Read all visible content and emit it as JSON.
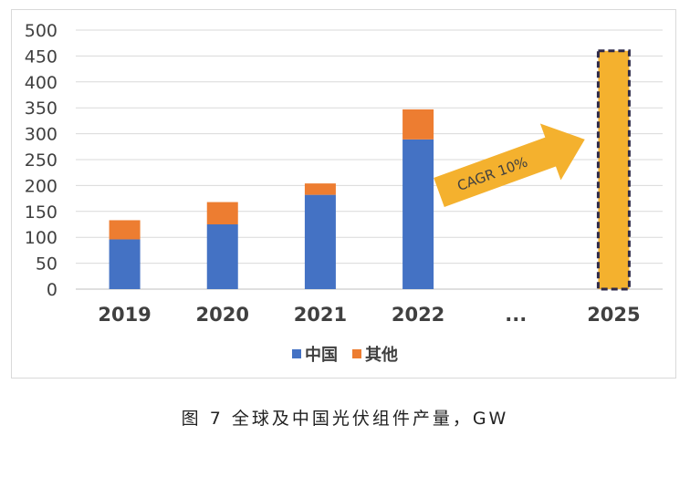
{
  "caption": "图 7 全球及中国光伏组件产量，GW",
  "chart_data": {
    "type": "bar",
    "stacked": true,
    "categories": [
      "2019",
      "2020",
      "2021",
      "2022",
      "...",
      "2025"
    ],
    "series": [
      {
        "name": "中国",
        "color": "#4472c4",
        "values": [
          96,
          125,
          182,
          289,
          null,
          null
        ]
      },
      {
        "name": "其他",
        "color": "#ed7d31",
        "values": [
          37,
          43,
          22,
          58,
          null,
          null
        ]
      }
    ],
    "projection": {
      "category": "2025",
      "value": 460,
      "color": "#f4b12e",
      "border_color": "#2e2a4a",
      "style": "dashed"
    },
    "annotation": {
      "text": "CAGR 10%",
      "color": "#f4b12e"
    },
    "ylim": [
      0,
      500
    ],
    "yticks": [
      0,
      50,
      100,
      150,
      200,
      250,
      300,
      350,
      400,
      450,
      500
    ],
    "grid": true,
    "legend_position": "bottom",
    "title": "",
    "xlabel": "",
    "ylabel": ""
  }
}
